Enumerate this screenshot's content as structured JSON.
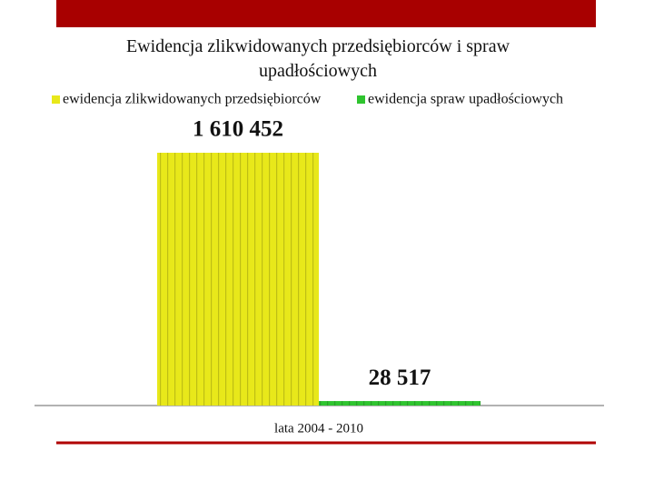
{
  "chart_data": {
    "type": "bar",
    "title": "Ewidencja zlikwidowanych przedsiębiorców i spraw upadłościowych",
    "categories": [
      "lata 2004 - 2010"
    ],
    "series": [
      {
        "name": "ewidencja zlikwidowanych przedsiębiorców",
        "color": "#e8e81a",
        "values": [
          1610452
        ],
        "value_labels": [
          "1 610 452"
        ]
      },
      {
        "name": "ewidencja spraw upadłościowych",
        "color": "#2fc42f",
        "values": [
          28517
        ],
        "value_labels": [
          "28 517"
        ]
      }
    ],
    "legend": "top"
  }
}
